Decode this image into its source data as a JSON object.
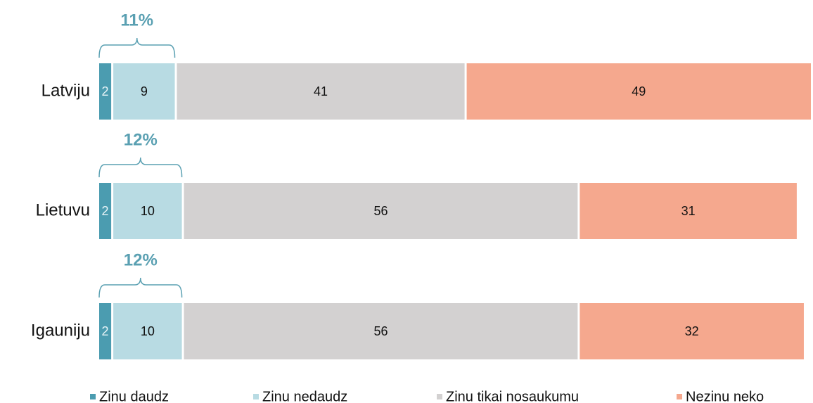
{
  "chart_data": {
    "type": "stacked-bar",
    "categories": [
      "Latviju",
      "Lietuvu",
      "Igauniju"
    ],
    "series": [
      {
        "name": "Zinu daudz",
        "color": "#4b9cb0",
        "values": [
          2,
          2,
          2
        ]
      },
      {
        "name": "Zinu nedaudz",
        "color": "#b8dbe3",
        "values": [
          9,
          10,
          10
        ]
      },
      {
        "name": "Zinu tikai nosaukumu",
        "color": "#d3d1d1",
        "values": [
          41,
          56,
          56
        ]
      },
      {
        "name": "Nezinu neko",
        "color": "#f5a88e",
        "values": [
          49,
          31,
          32
        ]
      }
    ],
    "annotations": [
      "11%",
      "12%",
      "12%"
    ],
    "annotation_color": "#5aa0b2",
    "xlim": [
      0,
      101
    ]
  }
}
